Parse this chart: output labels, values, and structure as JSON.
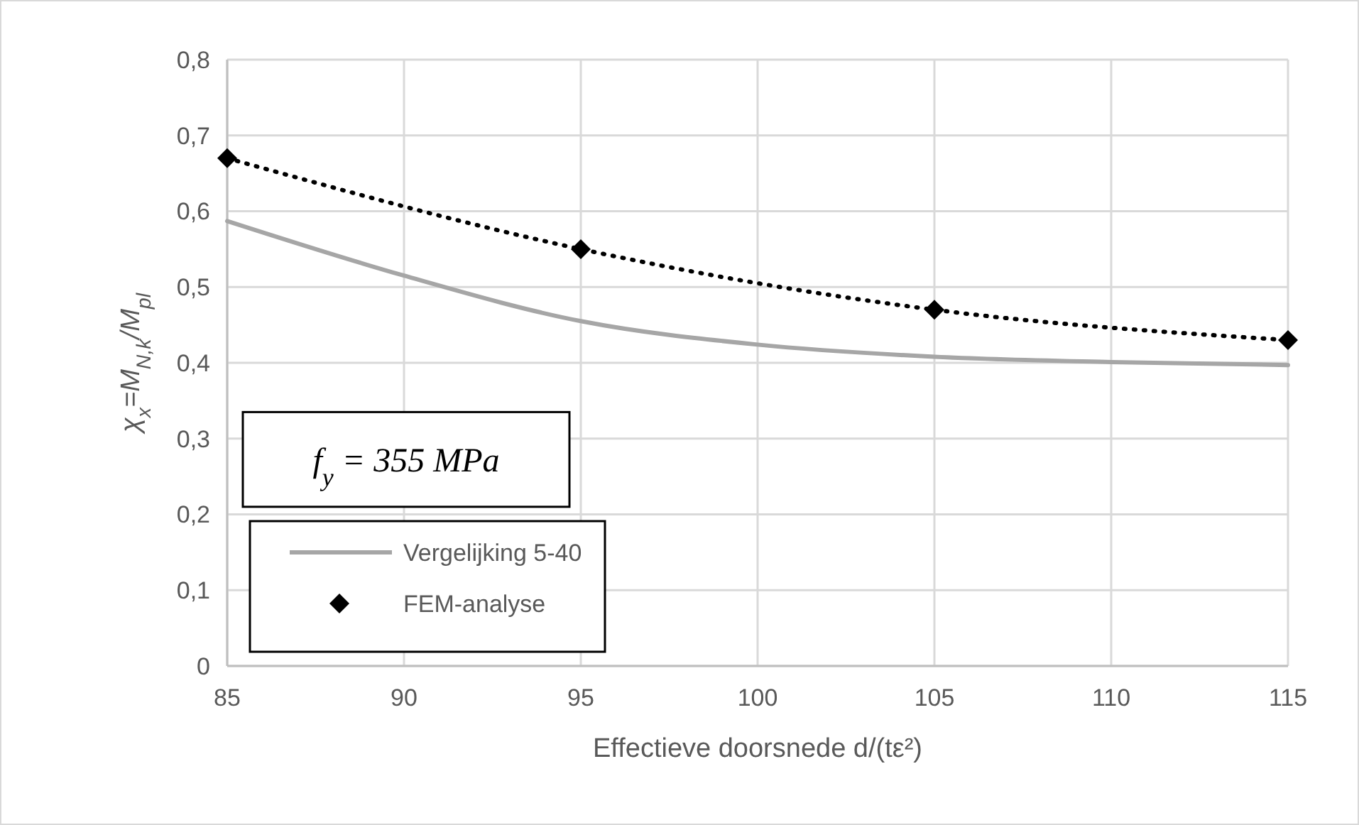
{
  "chart_data": {
    "type": "line",
    "xlabel": "Effectieve doorsnede d/(tε²)",
    "ylabel": "χ$_{x}$=M$_{N,k}$/M$_{pl}$",
    "annotations": [
      "f$_{y}$ = 355 MPa"
    ],
    "x": [
      85,
      90,
      95,
      100,
      105,
      110,
      115
    ],
    "series": [
      {
        "name": "Vergelijking 5-40",
        "color": "#a6a6a6",
        "marker": "none",
        "line_style": "solid",
        "values": [
          0.587,
          0.515,
          0.455,
          0.424,
          0.408,
          0.401,
          0.397
        ]
      },
      {
        "name": "FEM-analyse",
        "color": "#000000",
        "type": "scatter",
        "marker": "diamond",
        "x": [
          85,
          95,
          105,
          115
        ],
        "values": [
          0.67,
          0.55,
          0.47,
          0.43
        ]
      },
      {
        "color": "#000000",
        "type": "line",
        "marker": "none",
        "line_style": "dotted",
        "x": [
          85,
          95,
          105,
          115
        ],
        "values": [
          0.67,
          0.55,
          0.47,
          0.43
        ]
      }
    ],
    "xlim": [
      85,
      115
    ],
    "xticks": [
      85,
      90,
      95,
      100,
      105,
      110,
      115
    ],
    "ylim": [
      0,
      0.8
    ],
    "yticks": [
      0,
      {
        "value": 0.1,
        "label": "0,1"
      },
      {
        "value": 0.2,
        "label": "0,2"
      },
      {
        "value": 0.3,
        "label": "0,3"
      },
      {
        "value": 0.4,
        "label": "0,4"
      },
      {
        "value": 0.5,
        "label": "0,5"
      },
      {
        "value": 0.6,
        "label": "0,6"
      },
      {
        "value": 0.7,
        "label": "0,7"
      },
      {
        "value": 0.8,
        "label": "0,8"
      }
    ],
    "grid": true,
    "legend": "bottom left"
  }
}
